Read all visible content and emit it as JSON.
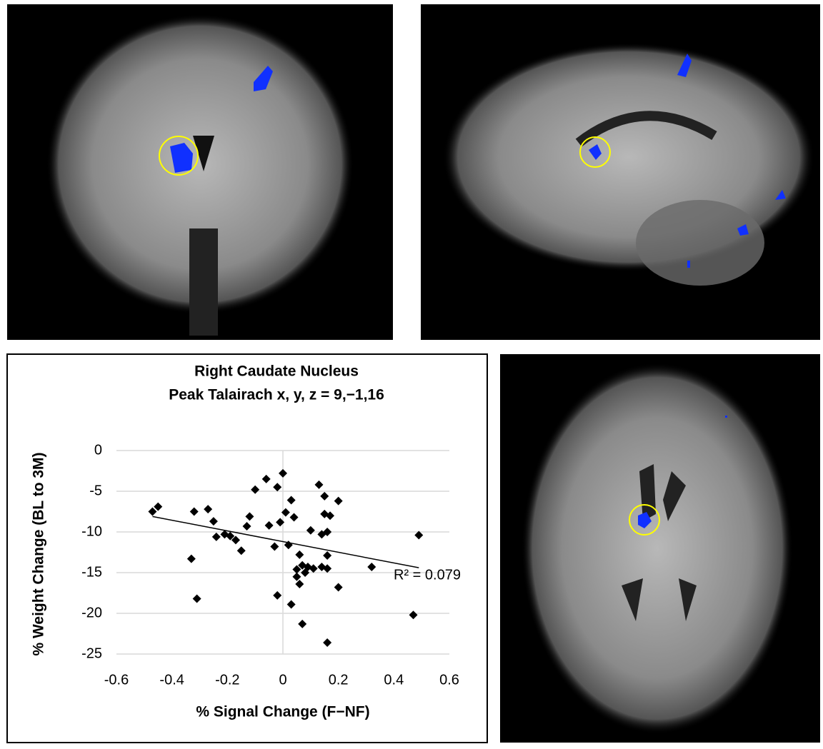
{
  "chart_data": {
    "type": "scatter",
    "title": "Right Caudate Nucleus",
    "subtitle": "Peak Talairach x, y, z = 9,−1,16",
    "x_label": "% Signal Change (F−NF)",
    "y_label": "% Weight Change (BL to 3M)",
    "annotation": "R² = 0.079",
    "color": "#000000",
    "x": [
      -0.47,
      -0.45,
      -0.32,
      -0.27,
      -0.25,
      -0.24,
      -0.21,
      -0.19,
      -0.17,
      -0.15,
      -0.13,
      -0.12,
      -0.1,
      -0.06,
      -0.05,
      -0.03,
      -0.02,
      0.0,
      -0.01,
      0.01,
      0.02,
      0.03,
      0.04,
      -0.02,
      0.03,
      -0.33,
      -0.31,
      0.06,
      0.07,
      0.05,
      0.06,
      0.08,
      0.09,
      0.07,
      0.1,
      0.13,
      0.14,
      0.14,
      0.15,
      0.15,
      0.16,
      0.17,
      0.16,
      0.16,
      0.16,
      0.2,
      0.2,
      0.32,
      0.47,
      0.49,
      0.05,
      0.11
    ],
    "values": [
      -7.5,
      -6.9,
      -7.5,
      -7.2,
      -8.7,
      -10.6,
      -10.3,
      -10.5,
      -11.0,
      -12.3,
      -9.3,
      -8.1,
      -4.8,
      -3.5,
      -9.2,
      -11.8,
      -4.5,
      -2.8,
      -8.8,
      -7.6,
      -11.6,
      -6.1,
      -8.2,
      -17.8,
      -18.9,
      -13.3,
      -18.2,
      -12.8,
      -14.1,
      -14.6,
      -16.4,
      -15.0,
      -14.3,
      -21.3,
      -9.8,
      -4.2,
      -10.3,
      -14.3,
      -5.6,
      -7.8,
      -10.0,
      -8.0,
      -12.9,
      -14.5,
      -23.6,
      -6.2,
      -16.8,
      -14.3,
      -20.2,
      -10.4,
      -15.5,
      -14.5
    ],
    "trendline": {
      "x": [
        -0.47,
        0.49
      ],
      "values": [
        -8.1,
        -14.4
      ],
      "color": "#000000"
    },
    "xlim": [
      -0.6,
      0.6
    ],
    "xticks": [
      -0.6,
      -0.4,
      -0.2,
      0,
      0.2,
      0.4,
      0.6
    ],
    "ylim": [
      -25,
      0
    ],
    "yticks": [
      0,
      -5,
      -10,
      -15,
      -20,
      -25
    ],
    "grid": true
  }
}
